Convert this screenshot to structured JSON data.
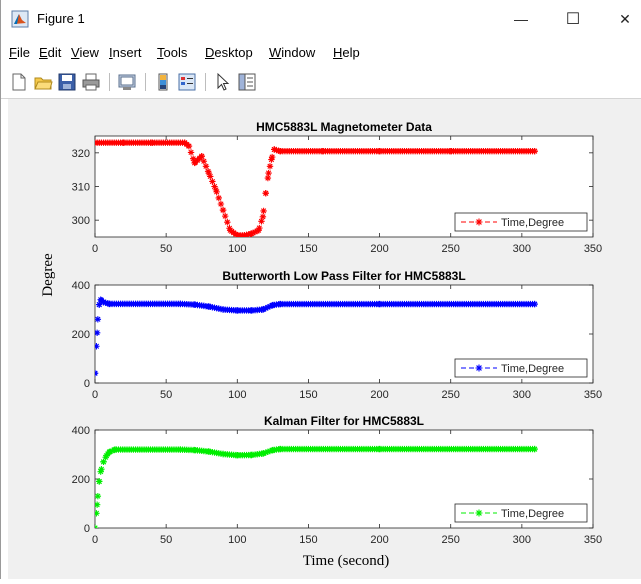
{
  "window": {
    "title": "Figure 1"
  },
  "titlebar_buttons": {
    "minimize": "—",
    "maximize": "☐",
    "close": "✕"
  },
  "menu": {
    "items": [
      "File",
      "Edit",
      "View",
      "Insert",
      "Tools",
      "Desktop",
      "Window",
      "Help"
    ],
    "accel": [
      "F",
      "E",
      "V",
      "I",
      "T",
      "D",
      "W",
      "H"
    ]
  },
  "toolbar": {
    "tools": [
      "new-figure-icon",
      "open-file-icon",
      "save-icon",
      "print-icon",
      "link-plot-icon",
      "colorbar-icon",
      "legend-icon",
      "pointer-icon",
      "property-inspector-icon"
    ]
  },
  "figure": {
    "ylabel": "Degree",
    "xlabel": "Time (second)"
  },
  "chart_data": [
    {
      "type": "scatter",
      "title": "HMC5883L Magnetometer Data",
      "xlim": [
        0,
        350
      ],
      "ylim": [
        295,
        325
      ],
      "xticks": [
        0,
        50,
        100,
        150,
        200,
        250,
        300,
        350
      ],
      "yticks": [
        300,
        310,
        320
      ],
      "color": "#ff0000",
      "legend": "Time,Degree",
      "legend_position": "bottom-right",
      "series": [
        {
          "name": "Time,Degree",
          "x_range": [
            0,
            309
          ],
          "samples": [
            [
              0,
              323
            ],
            [
              20,
              323
            ],
            [
              40,
              323
            ],
            [
              63,
              323
            ],
            [
              66,
              322
            ],
            [
              70,
              317
            ],
            [
              75,
              319
            ],
            [
              80,
              314
            ],
            [
              85,
              309
            ],
            [
              90,
              303
            ],
            [
              95,
              297
            ],
            [
              100,
              295.5
            ],
            [
              105,
              295.5
            ],
            [
              110,
              296
            ],
            [
              115,
              297
            ],
            [
              118,
              301
            ],
            [
              120,
              308
            ],
            [
              122,
              314
            ],
            [
              124,
              318
            ],
            [
              126,
              321
            ],
            [
              130,
              320.5
            ],
            [
              160,
              320.5
            ],
            [
              200,
              320.5
            ],
            [
              250,
              320.5
            ],
            [
              309,
              320.5
            ]
          ]
        }
      ]
    },
    {
      "type": "scatter",
      "title": "Butterworth Low Pass Filter for HMC5883L",
      "xlim": [
        0,
        350
      ],
      "ylim": [
        0,
        400
      ],
      "xticks": [
        0,
        50,
        100,
        150,
        200,
        250,
        300,
        350
      ],
      "yticks": [
        0,
        200,
        400
      ],
      "color": "#0000ff",
      "legend": "Time,Degree",
      "legend_position": "bottom-right",
      "series": [
        {
          "name": "Time,Degree",
          "x_range": [
            0,
            309
          ],
          "samples": [
            [
              0,
              40
            ],
            [
              1,
              150
            ],
            [
              2,
              260
            ],
            [
              3,
              320
            ],
            [
              4,
              340
            ],
            [
              6,
              330
            ],
            [
              10,
              323
            ],
            [
              60,
              323
            ],
            [
              70,
              320
            ],
            [
              80,
              312
            ],
            [
              90,
              300
            ],
            [
              100,
              296
            ],
            [
              110,
              296
            ],
            [
              118,
              300
            ],
            [
              125,
              318
            ],
            [
              130,
              322
            ],
            [
              200,
              322
            ],
            [
              309,
              322
            ]
          ]
        }
      ]
    },
    {
      "type": "scatter",
      "title": "Kalman Filter for HMC5883L",
      "xlim": [
        0,
        350
      ],
      "ylim": [
        0,
        400
      ],
      "xticks": [
        0,
        50,
        100,
        150,
        200,
        250,
        300,
        350
      ],
      "yticks": [
        0,
        200,
        400
      ],
      "color": "#00ee00",
      "legend": "Time,Degree",
      "legend_position": "bottom-right",
      "series": [
        {
          "name": "Time,Degree",
          "x_range": [
            0,
            309
          ],
          "samples": [
            [
              0,
              0
            ],
            [
              1,
              60
            ],
            [
              2,
              130
            ],
            [
              3,
              190
            ],
            [
              4,
              230
            ],
            [
              6,
              270
            ],
            [
              8,
              295
            ],
            [
              10,
              310
            ],
            [
              14,
              320
            ],
            [
              60,
              320
            ],
            [
              70,
              318
            ],
            [
              80,
              312
            ],
            [
              90,
              302
            ],
            [
              100,
              297
            ],
            [
              110,
              298
            ],
            [
              118,
              304
            ],
            [
              125,
              318
            ],
            [
              130,
              322
            ],
            [
              200,
              322
            ],
            [
              309,
              322
            ]
          ]
        }
      ]
    }
  ]
}
